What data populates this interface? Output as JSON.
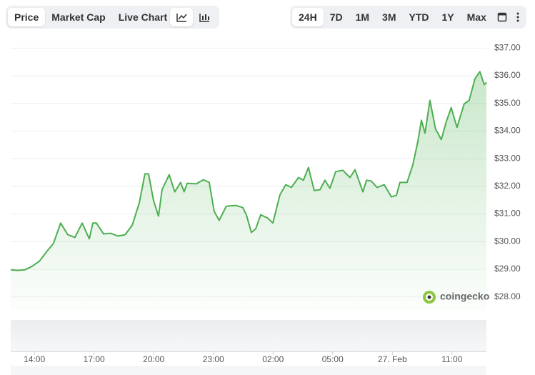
{
  "tabs": [
    "Price",
    "Market Cap",
    "Live Chart"
  ],
  "ranges": [
    "24H",
    "7D",
    "1M",
    "3M",
    "YTD",
    "1Y",
    "Max"
  ],
  "chart_data": {
    "type": "line",
    "x": [
      12.81,
      13.17,
      13.53,
      13.89,
      14.25,
      14.61,
      14.96,
      15.32,
      15.68,
      16.04,
      16.4,
      16.76,
      16.94,
      17.12,
      17.48,
      17.84,
      18.2,
      18.56,
      18.92,
      19.28,
      19.56,
      19.74,
      19.99,
      20.24,
      20.42,
      20.78,
      21.06,
      21.35,
      21.53,
      21.68,
      22.14,
      22.5,
      22.79,
      23.04,
      23.29,
      23.65,
      24.12,
      24.48,
      24.66,
      24.91,
      25.13,
      25.38,
      25.74,
      25.99,
      26.35,
      26.64,
      26.92,
      27.28,
      27.53,
      27.78,
      28.07,
      28.36,
      28.61,
      28.86,
      29.15,
      29.51,
      29.87,
      30.12,
      30.52,
      30.7,
      30.94,
      31.23,
      31.59,
      31.95,
      32.2,
      32.38,
      32.74,
      33.03,
      33.28,
      33.46,
      33.64,
      33.89,
      34.17,
      34.46,
      34.71,
      34.96,
      35.25,
      35.61,
      35.86,
      36.15,
      36.4,
      36.62,
      36.73
    ],
    "series": [
      {
        "color": "#4caf50",
        "values": [
          28.98,
          28.96,
          28.98,
          29.11,
          29.29,
          29.63,
          29.94,
          30.67,
          30.25,
          30.15,
          30.67,
          30.1,
          30.67,
          30.67,
          30.28,
          30.3,
          30.2,
          30.25,
          30.59,
          31.41,
          32.45,
          32.45,
          31.49,
          30.92,
          31.88,
          32.42,
          31.8,
          32.14,
          31.8,
          32.11,
          32.09,
          32.24,
          32.14,
          31.1,
          30.77,
          31.28,
          31.31,
          31.23,
          30.97,
          30.33,
          30.46,
          30.97,
          30.85,
          30.67,
          31.7,
          32.06,
          31.96,
          32.32,
          32.22,
          32.68,
          31.85,
          31.88,
          32.22,
          31.93,
          32.53,
          32.58,
          32.32,
          32.6,
          31.8,
          32.22,
          32.19,
          31.96,
          32.06,
          31.62,
          31.67,
          32.14,
          32.14,
          32.78,
          33.61,
          34.39,
          33.92,
          35.11,
          34.08,
          33.69,
          34.34,
          34.85,
          34.13,
          34.98,
          35.11,
          35.89,
          36.15,
          35.68,
          35.76
        ]
      }
    ],
    "xlim": [
      12.81,
      36.73
    ],
    "xticks": [
      {
        "value": 14,
        "label": "14:00"
      },
      {
        "value": 17,
        "label": "17:00"
      },
      {
        "value": 20,
        "label": "20:00"
      },
      {
        "value": 23,
        "label": "23:00"
      },
      {
        "value": 26,
        "label": "02:00"
      },
      {
        "value": 29,
        "label": "05:00"
      },
      {
        "value": 32,
        "label": "27. Feb"
      },
      {
        "value": 35,
        "label": "11:00"
      }
    ],
    "ylim": [
      27.5,
      37.5
    ],
    "yticks": [
      {
        "value": 28,
        "label": "$28.00"
      },
      {
        "value": 29,
        "label": "$29.00"
      },
      {
        "value": 30,
        "label": "$30.00"
      },
      {
        "value": 31,
        "label": "$31.00"
      },
      {
        "value": 32,
        "label": "$32.00"
      },
      {
        "value": 33,
        "label": "$33.00"
      },
      {
        "value": 34,
        "label": "$34.00"
      },
      {
        "value": 35,
        "label": "$35.00"
      },
      {
        "value": 36,
        "label": "$36.00"
      },
      {
        "value": 37,
        "label": "$37.00"
      }
    ],
    "grid": true,
    "watermark": "coingecko"
  }
}
